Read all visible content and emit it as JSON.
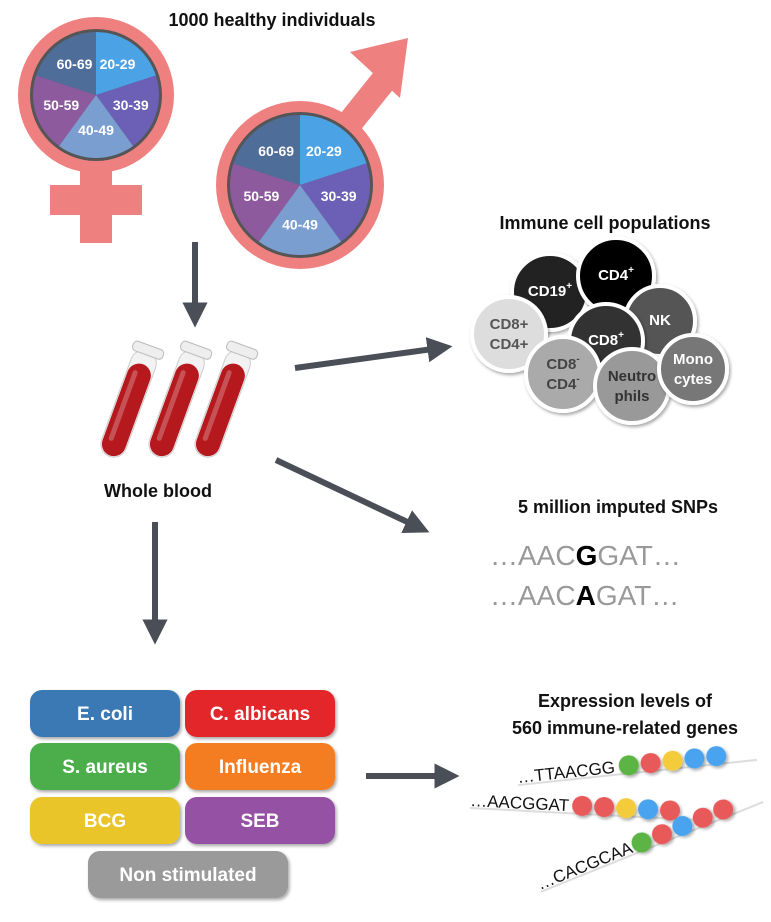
{
  "cohort": {
    "title_line1": "1000 healthy individuals",
    "title_line2": "",
    "age_groups": [
      "20-29",
      "30-39",
      "40-49",
      "50-59",
      "60-69"
    ],
    "age_colors": [
      "#4ba3e6",
      "#6b5fb6",
      "#7b9ed1",
      "#8d5a9e",
      "#4f6d99"
    ],
    "symbol_color": "#ef8080"
  },
  "blood": {
    "label": "Whole blood",
    "tube_color": "#b5191d"
  },
  "immune": {
    "title": "Immune cell populations",
    "cells": [
      {
        "line1": "CD19",
        "sup1": "+",
        "line2": "",
        "sup2": "",
        "fill": "#222222",
        "text": "#ffffff"
      },
      {
        "line1": "CD4",
        "sup1": "+",
        "line2": "",
        "sup2": "",
        "fill": "#000000",
        "text": "#ffffff"
      },
      {
        "line1": "NK",
        "sup1": "",
        "line2": "",
        "sup2": "",
        "fill": "#555555",
        "text": "#ffffff"
      },
      {
        "line1": "CD8+",
        "sup1": "",
        "line2": "CD4+",
        "sup2": "",
        "fill": "#dddddd",
        "text": "#555555"
      },
      {
        "line1": "CD8",
        "sup1": "+",
        "line2": "",
        "sup2": "",
        "fill": "#333333",
        "text": "#ffffff"
      },
      {
        "line1": "CD8",
        "sup1": "-",
        "line2": "CD4",
        "sup2": "-",
        "fill": "#aaaaaa",
        "text": "#444444"
      },
      {
        "line1": "Neutro",
        "sup1": "",
        "line2": "phils",
        "sup2": "",
        "fill": "#999999",
        "text": "#333333"
      },
      {
        "line1": "Mono",
        "sup1": "",
        "line2": "cytes",
        "sup2": "",
        "fill": "#777777",
        "text": "#ffffff"
      }
    ]
  },
  "snps": {
    "title": "5 million imputed SNPs",
    "sequences": [
      {
        "prefix": "…AAC",
        "allele": "G",
        "suffix": "GAT…"
      },
      {
        "prefix": "…AAC",
        "allele": "A",
        "suffix": "GAT…"
      }
    ]
  },
  "stimuli": [
    {
      "label": "E. coli",
      "color": "#3a79b5"
    },
    {
      "label": "C. albicans",
      "color": "#e2262b"
    },
    {
      "label": "S. aureus",
      "color": "#4cae4c"
    },
    {
      "label": "Influenza",
      "color": "#f47d20"
    },
    {
      "label": "BCG",
      "color": "#e9c52a"
    },
    {
      "label": "SEB",
      "color": "#9551a3"
    },
    {
      "label": "Non stimulated",
      "color": "#9a9a9a"
    }
  ],
  "expression": {
    "title_line1": "Expression levels of",
    "title_line2": "560 immune-related genes",
    "genes": [
      {
        "seq": "…TTAACGG",
        "beads": [
          "#5cb445",
          "#e85a5a",
          "#f4cc3a",
          "#4aa3ee",
          "#4aa3ee"
        ]
      },
      {
        "seq": "…AACGGAT",
        "beads": [
          "#e85a5a",
          "#e85a5a",
          "#f4cc3a",
          "#4aa3ee",
          "#e85a5a"
        ]
      },
      {
        "seq": "…CACGCAA",
        "beads": [
          "#5cb445",
          "#e85a5a",
          "#4aa3ee",
          "#e85a5a",
          "#e85a5a"
        ]
      }
    ]
  }
}
